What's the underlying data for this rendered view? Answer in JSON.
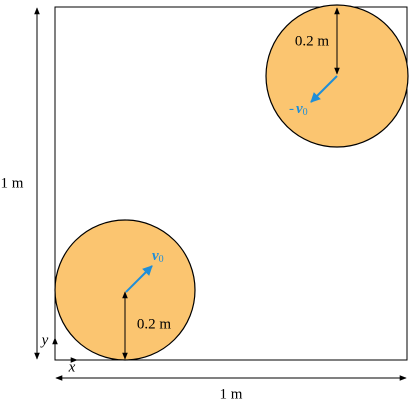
{
  "labels": {
    "height": "1 m",
    "width": "1 m",
    "radius_bottom": "0.2 m",
    "radius_top": "0.2 m",
    "x_axis": "x",
    "y_axis": "y"
  },
  "velocity_bottom": {
    "symbol": "v",
    "subscript": "0"
  },
  "velocity_top": {
    "sign": "-",
    "symbol": "v",
    "subscript": "0"
  }
}
